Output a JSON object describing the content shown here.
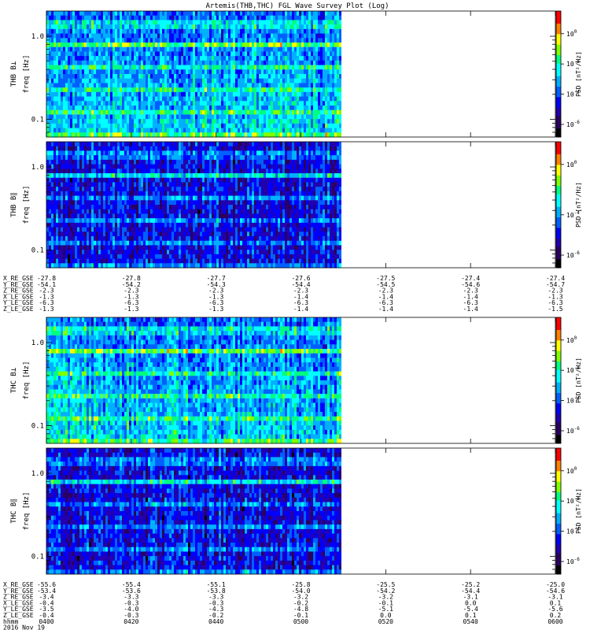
{
  "title": "Artemis(THB,THC) FGL Wave Survey Plot (Log)",
  "colors": {
    "colormap": [
      "#000000",
      "#2a0060",
      "#2200b0",
      "#0000ff",
      "#0060ff",
      "#00b0ff",
      "#00ffff",
      "#00ff80",
      "#80ff00",
      "#ffff00",
      "#ff8000",
      "#ff0000"
    ]
  },
  "chart_data": [
    {
      "type": "heatmap",
      "panel": "THB B_L",
      "ylabel_line1": "THB B⊥",
      "ylabel_line2": "freq [Hz]",
      "yticks": [
        "1.0",
        "0.1"
      ],
      "yscale": "log",
      "zlabel": "PSD [nT²/Hz]",
      "ztick_bases": [
        "10",
        "10",
        "10",
        "10"
      ],
      "ztick_exps": [
        "0",
        "-2",
        "-4",
        "-6"
      ],
      "data_coverage_fraction": 0.58
    },
    {
      "type": "heatmap",
      "panel": "THB B_par",
      "ylabel_line1": "THB B∥",
      "ylabel_line2": "freq [Hz]",
      "yticks": [
        "1.0",
        "0.1"
      ],
      "yscale": "log",
      "zlabel": "PSD [nT²/Hz]",
      "ztick_bases": [
        "10",
        "10",
        "10"
      ],
      "ztick_exps": [
        "0",
        "-4",
        "-6"
      ],
      "data_coverage_fraction": 0.58
    },
    {
      "type": "heatmap",
      "panel": "THC B_L",
      "ylabel_line1": "THC B⊥",
      "ylabel_line2": "freq [Hz]",
      "yticks": [
        "1.0",
        "0.1"
      ],
      "yscale": "log",
      "zlabel": "PSD [nT²/Hz]",
      "ztick_bases": [
        "10",
        "10",
        "10",
        "10"
      ],
      "ztick_exps": [
        "0",
        "-2",
        "-4",
        "-6"
      ],
      "data_coverage_fraction": 0.58
    },
    {
      "type": "heatmap",
      "panel": "THC B_par",
      "ylabel_line1": "THC B∥",
      "ylabel_line2": "freq [Hz]",
      "yticks": [
        "1.0",
        "0.1"
      ],
      "yscale": "log",
      "zlabel": "PSD [nT²/Hz]",
      "ztick_bases": [
        "10",
        "10",
        "10",
        "10"
      ],
      "ztick_exps": [
        "0",
        "-2",
        "-4",
        "-6"
      ],
      "data_coverage_fraction": 0.58
    }
  ],
  "thb_ephemeris": {
    "labels": [
      "X_RE_GSE",
      "Y_RE_GSE",
      "Z_RE_GSE",
      "X_LE_GSE",
      "Y_LE_GSE",
      "Z_LE_GSE"
    ],
    "columns": [
      [
        "-27.8",
        "-54.1",
        "-2.3",
        "-1.3",
        "-6.3",
        "-1.3"
      ],
      [
        "-27.8",
        "-54.2",
        "-2.3",
        "-1.3",
        "-6.3",
        "-1.3"
      ],
      [
        "-27.7",
        "-54.3",
        "-2.3",
        "-1.3",
        "-6.3",
        "-1.3"
      ],
      [
        "-27.6",
        "-54.4",
        "-2.3",
        "-1.4",
        "-6.3",
        "-1.4"
      ],
      [
        "-27.5",
        "-54.5",
        "-2.3",
        "-1.4",
        "-6.3",
        "-1.4"
      ],
      [
        "-27.4",
        "-54.6",
        "-2.3",
        "-1.4",
        "-6.3",
        "-1.4"
      ],
      [
        "-27.4",
        "-54.7",
        "-2.3",
        "-1.3",
        "-6.3",
        "-1.5"
      ]
    ]
  },
  "thc_ephemeris": {
    "labels": [
      "X_RE_GSE",
      "Y_RE_GSE",
      "Z_RE_GSE",
      "X_LE_GSE",
      "Y_LE_GSE",
      "Z_LE_GSE",
      "hhmm",
      "2016 Nov 19"
    ],
    "columns": [
      [
        "-55.6",
        "-53.4",
        "-3.4",
        "-0.4",
        "-3.5",
        "-0.4",
        "0400"
      ],
      [
        "-55.4",
        "-53.6",
        "-3.3",
        "-0.3",
        "-4.0",
        "-0.3",
        "0420"
      ],
      [
        "-55.1",
        "-53.8",
        "-3.3",
        "-0.3",
        "-4.3",
        "-0.2",
        "0440"
      ],
      [
        "-25.8",
        "-54.0",
        "-3.2",
        "-0.2",
        "-4.8",
        "-0.1",
        "0500"
      ],
      [
        "-25.5",
        "-54.2",
        "-3.2",
        "-0.1",
        "-5.1",
        "0.0",
        "0520"
      ],
      [
        "-25.2",
        "-54.4",
        "-3.1",
        "0.0",
        "-5.4",
        "0.1",
        "0540"
      ],
      [
        "-25.0",
        "-54.6",
        "-3.1",
        "0.1",
        "-5.6",
        "0.2",
        "0600"
      ]
    ]
  }
}
